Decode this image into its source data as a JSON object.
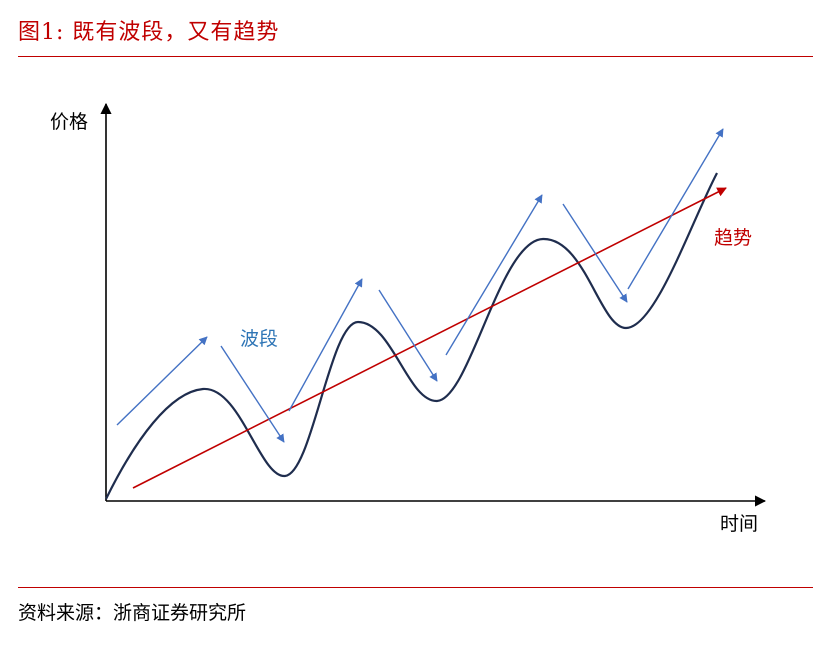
{
  "figure": {
    "title": "图1:  既有波段，又有趋势",
    "source": "资料来源：浙商证券研究所"
  },
  "diagram": {
    "y_axis_label": "价格",
    "x_axis_label": "时间",
    "wave_label": "波段",
    "trend_label": "趋势"
  },
  "colors": {
    "accent_red": "#c00000",
    "wave_blue": "#4472c4",
    "wave_label_blue": "#2e75b6",
    "curve_navy": "#1f2d4e",
    "trend_red": "#c00000",
    "axis": "#000000"
  }
}
